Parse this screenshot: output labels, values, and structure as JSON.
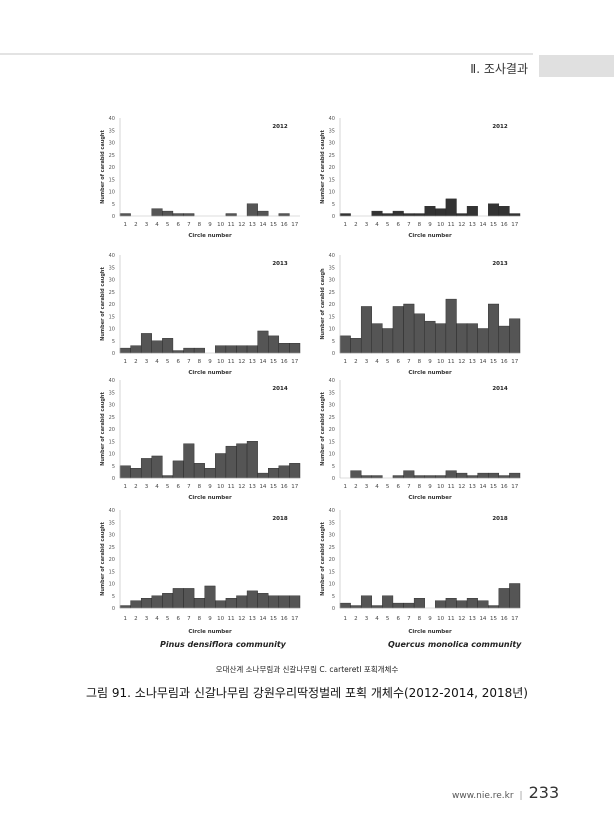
{
  "header": {
    "section": "Ⅱ. 조사결과"
  },
  "chart_data": [
    {
      "type": "bar",
      "panel": "left",
      "community": "Pinus densiflora",
      "title": "2012",
      "xlabel": "Circle number",
      "ylabel": "Number of carabid caught",
      "ylim": [
        0,
        40
      ],
      "yticks": [
        0,
        5,
        10,
        15,
        20,
        25,
        30,
        35,
        40
      ],
      "categories": [
        "1",
        "2",
        "3",
        "4",
        "5",
        "6",
        "7",
        "8",
        "9",
        "10",
        "11",
        "12",
        "13",
        "14",
        "15",
        "16",
        "17"
      ],
      "values": [
        1,
        0,
        0,
        3,
        2,
        1,
        1,
        0,
        0,
        0,
        1,
        0,
        5,
        2,
        0,
        1,
        0
      ],
      "color": "#555555"
    },
    {
      "type": "bar",
      "panel": "right",
      "community": "Quercus mongolica",
      "title": "2012",
      "xlabel": "Circle number",
      "ylabel": "Number of carabid caught",
      "ylim": [
        0,
        40
      ],
      "yticks": [
        0,
        5,
        10,
        15,
        20,
        25,
        30,
        35,
        40
      ],
      "categories": [
        "1",
        "2",
        "3",
        "4",
        "5",
        "6",
        "7",
        "8",
        "9",
        "10",
        "11",
        "12",
        "13",
        "14",
        "15",
        "16",
        "17"
      ],
      "values": [
        1,
        0,
        0,
        2,
        1,
        2,
        1,
        1,
        4,
        3,
        7,
        1,
        4,
        0,
        5,
        4,
        1
      ],
      "color": "#333333"
    },
    {
      "type": "bar",
      "panel": "left",
      "community": "Pinus densiflora",
      "title": "2013",
      "xlabel": "Circle number",
      "ylabel": "Number of carabid caught",
      "ylim": [
        0,
        40
      ],
      "yticks": [
        0,
        5,
        10,
        15,
        20,
        25,
        30,
        35,
        40
      ],
      "categories": [
        "1",
        "2",
        "3",
        "4",
        "5",
        "6",
        "7",
        "8",
        "9",
        "10",
        "11",
        "12",
        "13",
        "14",
        "15",
        "16",
        "17"
      ],
      "values": [
        2,
        3,
        8,
        5,
        6,
        1,
        2,
        2,
        0,
        3,
        3,
        3,
        3,
        9,
        7,
        4,
        4
      ],
      "color": "#555555"
    },
    {
      "type": "bar",
      "panel": "right",
      "community": "Quercus mongolica",
      "title": "2013",
      "xlabel": "Circle number",
      "ylabel": "Number of carabid caugh",
      "ylim": [
        0,
        40
      ],
      "yticks": [
        0,
        5,
        10,
        15,
        20,
        25,
        30,
        35,
        40
      ],
      "categories": [
        "1",
        "2",
        "3",
        "4",
        "5",
        "6",
        "7",
        "8",
        "9",
        "10",
        "11",
        "12",
        "13",
        "14",
        "15",
        "16",
        "17"
      ],
      "values": [
        7,
        6,
        19,
        12,
        10,
        19,
        20,
        16,
        13,
        12,
        22,
        12,
        12,
        10,
        20,
        11,
        14
      ],
      "color": "#555555"
    },
    {
      "type": "bar",
      "panel": "left",
      "community": "Pinus densiflora",
      "title": "2014",
      "xlabel": "Circle number",
      "ylabel": "Number of carabid caught",
      "ylim": [
        0,
        40
      ],
      "yticks": [
        0,
        5,
        10,
        15,
        20,
        25,
        30,
        35,
        40
      ],
      "categories": [
        "1",
        "2",
        "3",
        "4",
        "5",
        "6",
        "7",
        "8",
        "9",
        "10",
        "11",
        "12",
        "13",
        "14",
        "15",
        "16",
        "17"
      ],
      "values": [
        5,
        4,
        8,
        9,
        1,
        7,
        14,
        6,
        4,
        10,
        13,
        14,
        15,
        2,
        4,
        5,
        6
      ],
      "color": "#555555"
    },
    {
      "type": "bar",
      "panel": "right",
      "community": "Quercus mongolica",
      "title": "2014",
      "xlabel": "Circle number",
      "ylabel": "Number of carabid caught",
      "ylim": [
        0,
        40
      ],
      "yticks": [
        0,
        5,
        10,
        15,
        20,
        25,
        30,
        35,
        40
      ],
      "categories": [
        "1",
        "2",
        "3",
        "4",
        "5",
        "6",
        "7",
        "8",
        "9",
        "10",
        "11",
        "12",
        "13",
        "14",
        "15",
        "16",
        "17"
      ],
      "values": [
        0,
        3,
        1,
        1,
        0,
        1,
        3,
        1,
        1,
        1,
        3,
        2,
        1,
        2,
        2,
        1,
        2
      ],
      "color": "#555555"
    },
    {
      "type": "bar",
      "panel": "left",
      "community": "Pinus densiflora",
      "title": "2018",
      "xlabel": "Circle number",
      "ylabel": "Number of carabid caught",
      "ylim": [
        0,
        40
      ],
      "yticks": [
        0,
        5,
        10,
        15,
        20,
        25,
        30,
        35,
        40
      ],
      "categories": [
        "1",
        "2",
        "3",
        "4",
        "5",
        "6",
        "7",
        "8",
        "9",
        "10",
        "11",
        "12",
        "13",
        "14",
        "15",
        "16",
        "17"
      ],
      "values": [
        1,
        3,
        4,
        5,
        6,
        8,
        8,
        4,
        9,
        3,
        4,
        5,
        7,
        6,
        5,
        5,
        5
      ],
      "color": "#555555"
    },
    {
      "type": "bar",
      "panel": "right",
      "community": "Quercus mongolica",
      "title": "2018",
      "xlabel": "Circle number",
      "ylabel": "Number of carabid caught",
      "ylim": [
        0,
        40
      ],
      "yticks": [
        0,
        5,
        10,
        15,
        20,
        25,
        30,
        35,
        40
      ],
      "categories": [
        "1",
        "2",
        "3",
        "4",
        "5",
        "6",
        "7",
        "8",
        "9",
        "10",
        "11",
        "12",
        "13",
        "14",
        "15",
        "16",
        "17"
      ],
      "values": [
        2,
        1,
        5,
        1,
        5,
        2,
        2,
        4,
        0,
        3,
        4,
        3,
        4,
        3,
        1,
        8,
        10
      ],
      "color": "#555555"
    }
  ],
  "communities": {
    "left": "Pinus densiflora community",
    "right": "Quercus monolica community"
  },
  "subcaption": "오대산계 소나무림과 신갈나무림 C. carteretI 포획개체수",
  "caption": "그림 91. 소나무림과 신갈나무림 강원우리딱정벌레 포획 개체수(2012-2014, 2018년)",
  "footer": {
    "url": "www.nie.re.kr",
    "separator": "|",
    "page": "233"
  }
}
